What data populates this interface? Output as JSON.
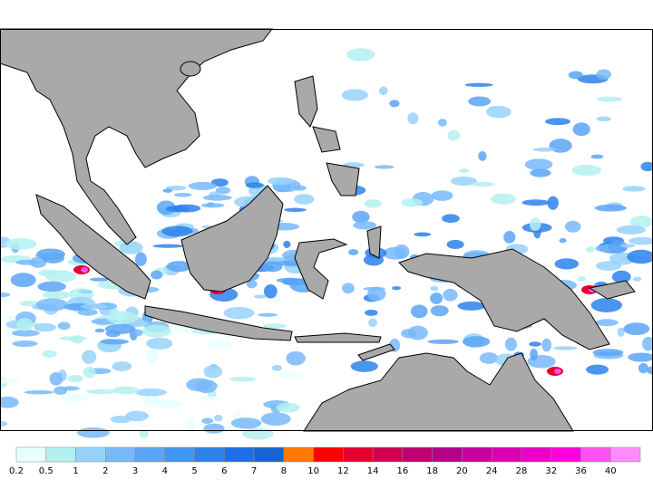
{
  "colorbar": {
    "levels": [
      0.2,
      0.5,
      1,
      2,
      3,
      4,
      5,
      6,
      7,
      8,
      10,
      12,
      14,
      16,
      18,
      20,
      24,
      28,
      32,
      36,
      40
    ],
    "colors": [
      "#e8ffff",
      "#b4f0f0",
      "#96d2fa",
      "#78b9fa",
      "#5aa5f5",
      "#4196f0",
      "#2d82eb",
      "#1e6ee6",
      "#1464d2",
      "#ff7800",
      "#ff0000",
      "#e6002d",
      "#d20050",
      "#be0073",
      "#b4008c",
      "#c800a0",
      "#dc00b4",
      "#eb00c8",
      "#ff00dc",
      "#ff50f0",
      "#ff8cff"
    ]
  }
}
